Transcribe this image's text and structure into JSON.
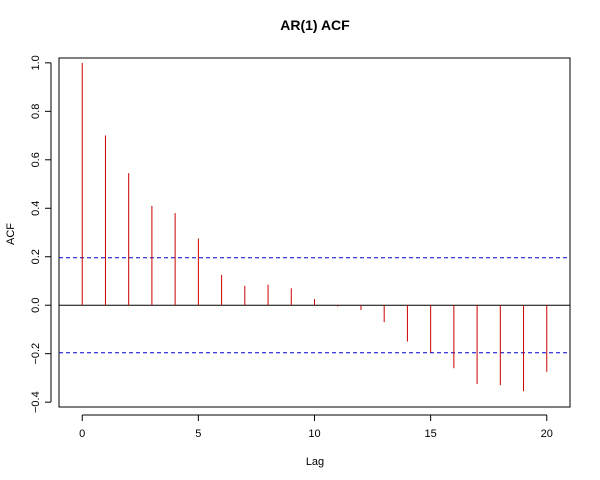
{
  "chart_data": {
    "type": "bar",
    "title": "AR(1) ACF",
    "xlabel": "Lag",
    "ylabel": "ACF",
    "x": [
      0,
      1,
      2,
      3,
      4,
      5,
      6,
      7,
      8,
      9,
      10,
      11,
      12,
      13,
      14,
      15,
      16,
      17,
      18,
      19,
      20
    ],
    "values": [
      1.0,
      0.7,
      0.545,
      0.41,
      0.38,
      0.275,
      0.125,
      0.08,
      0.085,
      0.07,
      0.025,
      -0.005,
      -0.02,
      -0.07,
      -0.15,
      -0.195,
      -0.26,
      -0.325,
      -0.33,
      -0.355,
      -0.275
    ],
    "xlim": [
      -1,
      21
    ],
    "ylim": [
      -0.42,
      1.02
    ],
    "x_ticks": [
      0,
      5,
      10,
      15,
      20
    ],
    "y_ticks": [
      -0.4,
      -0.2,
      0.0,
      0.2,
      0.4,
      0.6,
      0.8,
      1.0
    ],
    "x_tick_labels": [
      "0",
      "5",
      "10",
      "15",
      "20"
    ],
    "y_tick_labels": [
      "−0.4",
      "−0.2",
      "0.0",
      "0.2",
      "0.4",
      "0.6",
      "0.8",
      "1.0"
    ],
    "confidence_bounds": [
      0.196,
      -0.196
    ],
    "colors": {
      "bars": "#cc0000",
      "bounds": "#0000cc",
      "zero_line": "#000000",
      "frame": "#000000"
    },
    "grid": false,
    "legend": "none"
  }
}
